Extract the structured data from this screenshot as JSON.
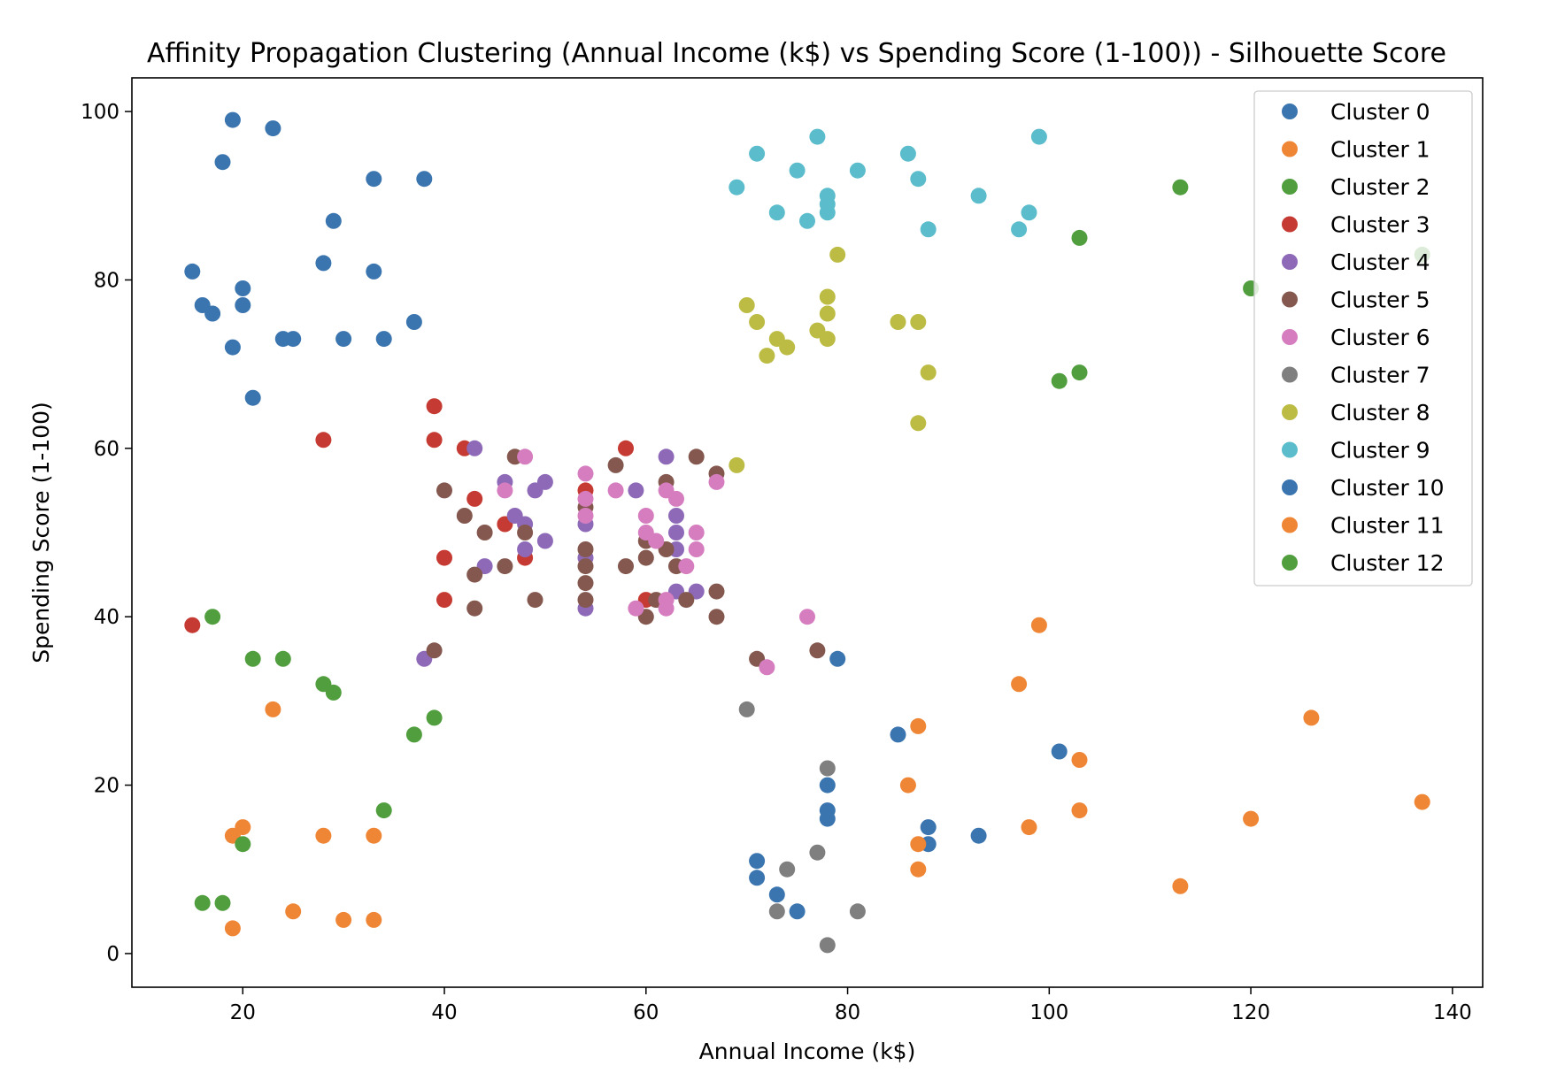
{
  "chart_data": {
    "type": "scatter",
    "title": "Affinity Propagation Clustering (Annual Income (k$) vs Spending Score (1-100)) - Silhouette Score",
    "xlabel": "Annual Income (k$)",
    "ylabel": "Spending Score (1-100)",
    "xlim": [
      9,
      143
    ],
    "ylim": [
      -4,
      104
    ],
    "xticks": [
      20,
      40,
      60,
      80,
      100,
      120,
      140
    ],
    "yticks": [
      0,
      20,
      40,
      60,
      80,
      100
    ],
    "grid": false,
    "legend_position": "top-right",
    "series": [
      {
        "name": "Cluster 0",
        "color": "#3b75af",
        "points": [
          [
            19,
            99
          ],
          [
            23,
            98
          ],
          [
            18,
            94
          ],
          [
            33,
            92
          ],
          [
            38,
            92
          ],
          [
            29,
            87
          ],
          [
            28,
            82
          ],
          [
            15,
            81
          ],
          [
            33,
            81
          ],
          [
            20,
            79
          ],
          [
            16,
            77
          ],
          [
            20,
            77
          ],
          [
            17,
            76
          ],
          [
            37,
            75
          ],
          [
            24,
            73
          ],
          [
            25,
            73
          ],
          [
            30,
            73
          ],
          [
            34,
            73
          ],
          [
            19,
            72
          ],
          [
            21,
            66
          ]
        ]
      },
      {
        "name": "Cluster 1",
        "color": "#ef8636",
        "points": [
          [
            23,
            29
          ],
          [
            20,
            15
          ],
          [
            19,
            14
          ],
          [
            28,
            14
          ],
          [
            33,
            14
          ],
          [
            25,
            5
          ],
          [
            30,
            4
          ],
          [
            33,
            4
          ],
          [
            19,
            3
          ]
        ]
      },
      {
        "name": "Cluster 2",
        "color": "#519e3e",
        "points": [
          [
            113,
            91
          ],
          [
            103,
            85
          ],
          [
            137,
            83
          ],
          [
            120,
            79
          ],
          [
            103,
            69
          ],
          [
            101,
            68
          ]
        ]
      },
      {
        "name": "Cluster 3",
        "color": "#c53a32",
        "points": [
          [
            39,
            65
          ],
          [
            28,
            61
          ],
          [
            39,
            61
          ],
          [
            42,
            60
          ],
          [
            58,
            60
          ],
          [
            54,
            55
          ],
          [
            43,
            54
          ],
          [
            46,
            51
          ],
          [
            40,
            47
          ],
          [
            48,
            47
          ],
          [
            40,
            42
          ],
          [
            60,
            42
          ],
          [
            15,
            39
          ]
        ]
      },
      {
        "name": "Cluster 4",
        "color": "#8d69b8",
        "points": [
          [
            43,
            60
          ],
          [
            62,
            59
          ],
          [
            46,
            56
          ],
          [
            50,
            56
          ],
          [
            49,
            55
          ],
          [
            59,
            55
          ],
          [
            47,
            52
          ],
          [
            63,
            52
          ],
          [
            48,
            51
          ],
          [
            54,
            51
          ],
          [
            50,
            49
          ],
          [
            48,
            48
          ],
          [
            63,
            48
          ],
          [
            54,
            47
          ],
          [
            44,
            46
          ],
          [
            63,
            43
          ],
          [
            65,
            43
          ],
          [
            54,
            41
          ],
          [
            38,
            35
          ],
          [
            63,
            50
          ]
        ]
      },
      {
        "name": "Cluster 5",
        "color": "#84584e",
        "points": [
          [
            47,
            59
          ],
          [
            65,
            59
          ],
          [
            57,
            58
          ],
          [
            67,
            57
          ],
          [
            62,
            56
          ],
          [
            40,
            55
          ],
          [
            42,
            52
          ],
          [
            54,
            53
          ],
          [
            44,
            50
          ],
          [
            48,
            50
          ],
          [
            60,
            49
          ],
          [
            54,
            48
          ],
          [
            62,
            48
          ],
          [
            60,
            47
          ],
          [
            46,
            46
          ],
          [
            54,
            46
          ],
          [
            58,
            46
          ],
          [
            63,
            46
          ],
          [
            43,
            45
          ],
          [
            54,
            44
          ],
          [
            67,
            43
          ],
          [
            49,
            42
          ],
          [
            54,
            42
          ],
          [
            61,
            42
          ],
          [
            64,
            42
          ],
          [
            43,
            41
          ],
          [
            60,
            40
          ],
          [
            67,
            40
          ],
          [
            39,
            36
          ],
          [
            77,
            36
          ],
          [
            71,
            35
          ]
        ]
      },
      {
        "name": "Cluster 6",
        "color": "#d57dbf",
        "points": [
          [
            48,
            59
          ],
          [
            54,
            57
          ],
          [
            67,
            56
          ],
          [
            46,
            55
          ],
          [
            57,
            55
          ],
          [
            62,
            55
          ],
          [
            63,
            54
          ],
          [
            54,
            54
          ],
          [
            54,
            52
          ],
          [
            60,
            52
          ],
          [
            60,
            50
          ],
          [
            65,
            50
          ],
          [
            61,
            49
          ],
          [
            65,
            48
          ],
          [
            64,
            46
          ],
          [
            62,
            42
          ],
          [
            59,
            41
          ],
          [
            62,
            41
          ],
          [
            76,
            40
          ],
          [
            72,
            34
          ]
        ]
      },
      {
        "name": "Cluster 7",
        "color": "#7f7f7f",
        "points": [
          [
            70,
            29
          ],
          [
            78,
            22
          ],
          [
            77,
            12
          ],
          [
            74,
            10
          ],
          [
            73,
            5
          ],
          [
            81,
            5
          ],
          [
            78,
            1
          ]
        ]
      },
      {
        "name": "Cluster 8",
        "color": "#bcbc45",
        "points": [
          [
            79,
            83
          ],
          [
            78,
            78
          ],
          [
            70,
            77
          ],
          [
            78,
            76
          ],
          [
            71,
            75
          ],
          [
            85,
            75
          ],
          [
            87,
            75
          ],
          [
            77,
            74
          ],
          [
            73,
            73
          ],
          [
            78,
            73
          ],
          [
            74,
            72
          ],
          [
            72,
            71
          ],
          [
            88,
            69
          ],
          [
            87,
            63
          ],
          [
            69,
            58
          ]
        ]
      },
      {
        "name": "Cluster 9",
        "color": "#5bbccc",
        "points": [
          [
            77,
            97
          ],
          [
            99,
            97
          ],
          [
            71,
            95
          ],
          [
            86,
            95
          ],
          [
            75,
            93
          ],
          [
            81,
            93
          ],
          [
            87,
            92
          ],
          [
            69,
            91
          ],
          [
            78,
            90
          ],
          [
            93,
            90
          ],
          [
            78,
            89
          ],
          [
            73,
            88
          ],
          [
            78,
            88
          ],
          [
            98,
            88
          ],
          [
            76,
            87
          ],
          [
            88,
            86
          ],
          [
            97,
            86
          ]
        ]
      },
      {
        "name": "Cluster 10",
        "color": "#3b75af",
        "points": [
          [
            79,
            35
          ],
          [
            85,
            26
          ],
          [
            101,
            24
          ],
          [
            78,
            20
          ],
          [
            78,
            17
          ],
          [
            78,
            16
          ],
          [
            88,
            15
          ],
          [
            93,
            14
          ],
          [
            88,
            13
          ],
          [
            71,
            11
          ],
          [
            71,
            9
          ],
          [
            73,
            7
          ],
          [
            75,
            5
          ]
        ]
      },
      {
        "name": "Cluster 11",
        "color": "#ef8636",
        "points": [
          [
            99,
            39
          ],
          [
            97,
            32
          ],
          [
            126,
            28
          ],
          [
            87,
            27
          ],
          [
            103,
            23
          ],
          [
            86,
            20
          ],
          [
            137,
            18
          ],
          [
            103,
            17
          ],
          [
            120,
            16
          ],
          [
            98,
            15
          ],
          [
            87,
            13
          ],
          [
            87,
            10
          ],
          [
            113,
            8
          ]
        ]
      },
      {
        "name": "Cluster 12",
        "color": "#519e3e",
        "points": [
          [
            17,
            40
          ],
          [
            21,
            35
          ],
          [
            24,
            35
          ],
          [
            28,
            32
          ],
          [
            29,
            31
          ],
          [
            39,
            28
          ],
          [
            37,
            26
          ],
          [
            34,
            17
          ],
          [
            20,
            13
          ],
          [
            16,
            6
          ],
          [
            18,
            6
          ]
        ]
      }
    ]
  }
}
